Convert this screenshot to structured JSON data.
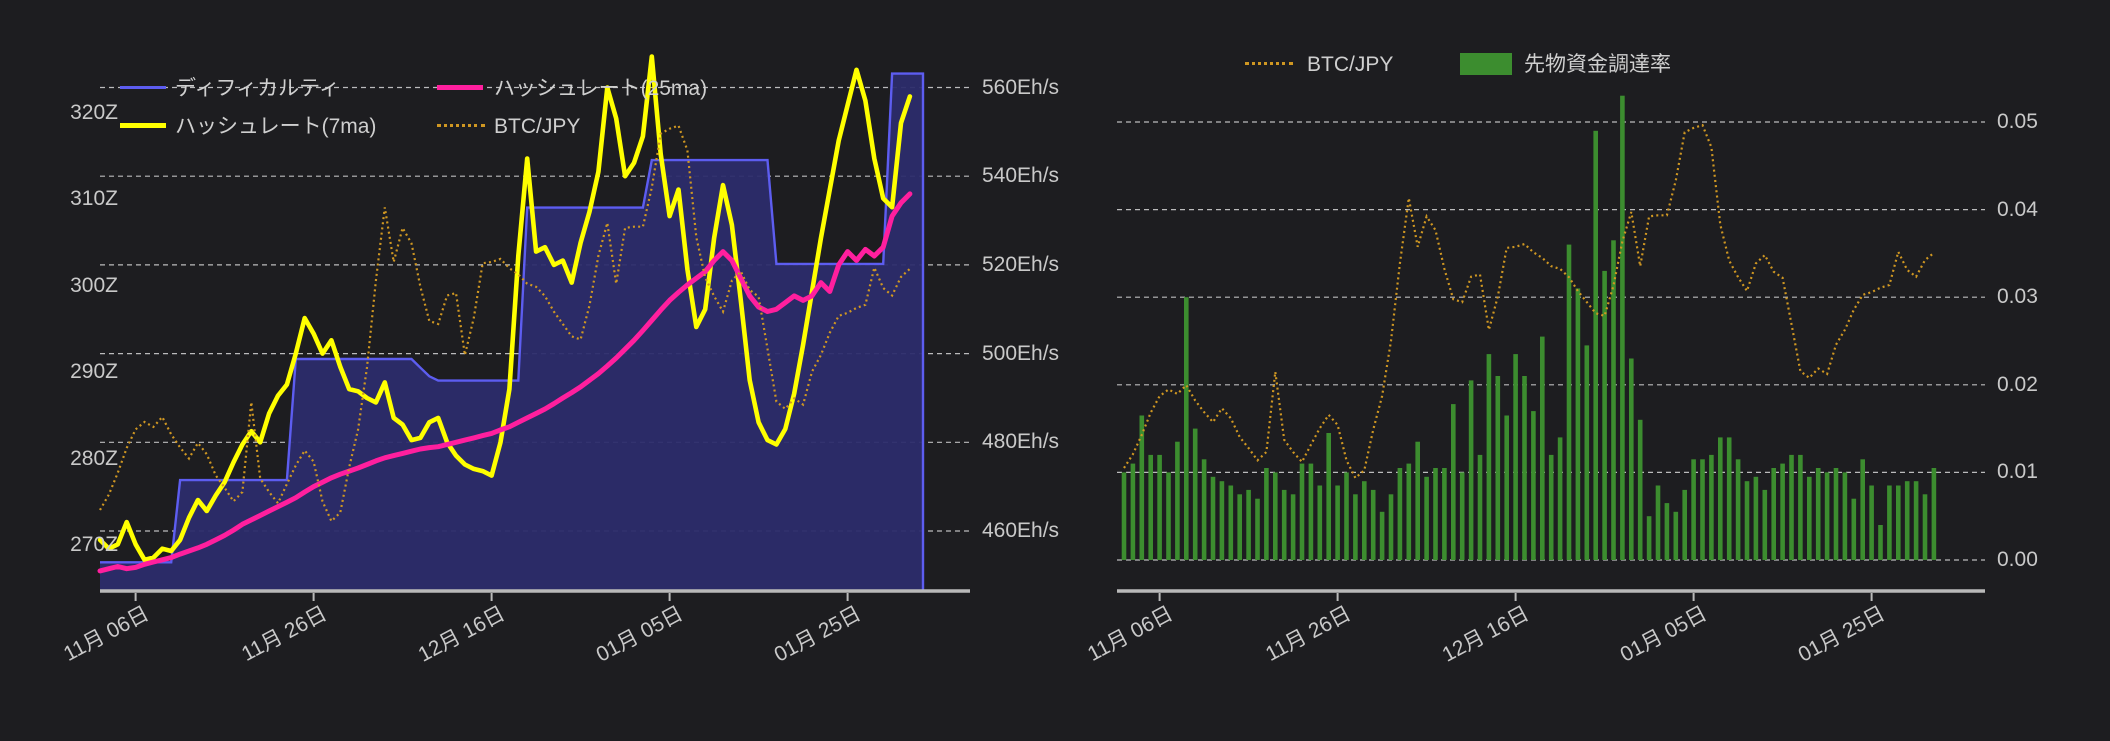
{
  "app": {
    "background": "#1d1d20",
    "description_visible_text_only": true
  },
  "chart_data": [
    {
      "type": "line",
      "title": "",
      "position": "left",
      "grid": true,
      "legend_position": "top, 2 columns",
      "x_tick_labels": [
        "11月 06日",
        "11月 26日",
        "12月 16日",
        "01月 05日",
        "01月 25日"
      ],
      "x_tick_days": [
        4,
        24,
        44,
        64,
        84
      ],
      "x_unit": "day index (1 point per day)",
      "y_left_axis": {
        "labels": [
          "320Z",
          "310Z",
          "300Z",
          "290Z",
          "280Z",
          "270Z"
        ],
        "values": [
          320,
          310,
          300,
          290,
          280,
          270
        ],
        "unit": "Z"
      },
      "y_right_axis": {
        "labels": [
          "560Eh/s",
          "540Eh/s",
          "520Eh/s",
          "500Eh/s",
          "480Eh/s",
          "460Eh/s"
        ],
        "values": [
          560,
          540,
          520,
          500,
          480,
          460
        ],
        "unit": "Eh/s"
      },
      "legend": [
        {
          "label": "ディフィカルティ",
          "color": "#5d5df0",
          "style": "line"
        },
        {
          "label": "ハッシュレート(25ma)",
          "color": "#ff1f9e",
          "style": "line"
        },
        {
          "label": "ハッシュレート(7ma)",
          "color": "#ffff00",
          "style": "line"
        },
        {
          "label": "BTC/JPY",
          "color": "#cf9722",
          "style": "dotted"
        }
      ],
      "series": [
        {
          "name": "ディフィカルティ",
          "type": "step_area",
          "axis": "left",
          "unit": "Z",
          "color": "#5d5df0",
          "fill": "#2c2c6c",
          "values": [
            268,
            268,
            268,
            268,
            268,
            268,
            268,
            268,
            268,
            277.5,
            277.5,
            277.5,
            277.5,
            277.5,
            277.5,
            277.5,
            277.5,
            277.5,
            277.5,
            277.5,
            277.5,
            277.5,
            291.5,
            291.5,
            291.5,
            291.5,
            291.5,
            291.5,
            291.5,
            291.5,
            291.5,
            291.5,
            291.5,
            291.5,
            291.5,
            291.5,
            290.5,
            289.5,
            289,
            289,
            289,
            289,
            289,
            289,
            289,
            289,
            289,
            289,
            309,
            309,
            309,
            309,
            309,
            309,
            309,
            309,
            309,
            309,
            309,
            309,
            309,
            309,
            314.5,
            314.5,
            314.5,
            314.5,
            314.5,
            314.5,
            314.5,
            314.5,
            314.5,
            314.5,
            314.5,
            314.5,
            314.5,
            314.5,
            302.5,
            302.5,
            302.5,
            302.5,
            302.5,
            302.5,
            302.5,
            302.5,
            302.5,
            302.5,
            302.5,
            302.5,
            302.5,
            324.5,
            324.5,
            324.5
          ]
        },
        {
          "name": "ハッシュレート(7ma)",
          "type": "line",
          "axis": "right",
          "unit": "Eh/s",
          "color": "#ffff00",
          "values": [
            458,
            456,
            457,
            462,
            457,
            453.5,
            454,
            456,
            455.5,
            458,
            463,
            467,
            464.5,
            468,
            471,
            475.5,
            479.5,
            482.5,
            480,
            486.5,
            490.5,
            493,
            500,
            508,
            504.5,
            500,
            503,
            497,
            492,
            491.5,
            490,
            489,
            493.5,
            485.5,
            484,
            480.5,
            481,
            484.5,
            485.5,
            480,
            477,
            475,
            474,
            473.5,
            472.5,
            480,
            492,
            522,
            544,
            523,
            524,
            520,
            521,
            516,
            525,
            532,
            541,
            560,
            553,
            540,
            543,
            549,
            567,
            545,
            531,
            537,
            519,
            506,
            510,
            526,
            538,
            529,
            512,
            494,
            484.5,
            480.5,
            479.5,
            483,
            491,
            502,
            514,
            526,
            537,
            548,
            556,
            564,
            557,
            544,
            535,
            533,
            552,
            558
          ]
        },
        {
          "name": "ハッシュレート(25ma)",
          "type": "line",
          "axis": "right",
          "unit": "Eh/s",
          "color": "#ff1f9e",
          "values": [
            451,
            451.5,
            452,
            451.5,
            451.8,
            452.5,
            453,
            453.5,
            454,
            454.8,
            455.5,
            456.2,
            457,
            458,
            459,
            460.2,
            461.5,
            462.5,
            463.5,
            464.5,
            465.5,
            466.5,
            467.5,
            468.8,
            470,
            471,
            472,
            472.8,
            473.5,
            474.2,
            475,
            475.8,
            476.5,
            477,
            477.5,
            478,
            478.5,
            478.8,
            479,
            479.5,
            480,
            480.5,
            481,
            481.5,
            482,
            482.8,
            483.5,
            484.5,
            485.5,
            486.5,
            487.5,
            488.7,
            490,
            491.2,
            492.5,
            494,
            495.5,
            497.2,
            499,
            501,
            503,
            505.2,
            507.5,
            509.8,
            512,
            513.8,
            515.5,
            517,
            518.5,
            521,
            523,
            521,
            517,
            513,
            510.5,
            509.5,
            510,
            511.5,
            513,
            512,
            513,
            516,
            514,
            520,
            523,
            521,
            523.5,
            522,
            524,
            531,
            534,
            536
          ]
        },
        {
          "name": "BTC/JPY",
          "type": "dotted_line",
          "axis": "hidden",
          "unit": "million JPY",
          "color": "#cf9722",
          "values": [
            10.3,
            10.55,
            10.9,
            11.3,
            11.6,
            11.72,
            11.64,
            11.8,
            11.52,
            11.31,
            11.13,
            11.38,
            11.2,
            10.86,
            10.66,
            10.44,
            10.59,
            12.04,
            10.81,
            10.59,
            10.41,
            10.72,
            11.02,
            11.26,
            11.08,
            10.44,
            10.12,
            10.26,
            10.99,
            11.6,
            12.6,
            14.0,
            15.18,
            14.3,
            14.85,
            14.6,
            13.9,
            13.35,
            13.3,
            13.76,
            13.8,
            12.8,
            13.4,
            14.28,
            14.3,
            14.35,
            14.2,
            14.1,
            13.95,
            13.9,
            13.75,
            13.5,
            13.3,
            13.1,
            13.05,
            13.6,
            14.4,
            14.93,
            13.95,
            14.85,
            14.87,
            14.87,
            15.5,
            16.37,
            16.45,
            16.5,
            16.1,
            14.7,
            14.05,
            13.75,
            13.5,
            14.0,
            14.15,
            13.85,
            13.74,
            12.9,
            12.05,
            11.93,
            12.1,
            12.0,
            12.53,
            12.8,
            13.16,
            13.43,
            13.48,
            13.56,
            13.61,
            14.21,
            13.88,
            13.76,
            14.06,
            14.19
          ]
        }
      ]
    },
    {
      "type": "bar",
      "title": "",
      "position": "right",
      "grid": true,
      "legend_position": "top centered, 1 row",
      "x_tick_labels": [
        "11月 06日",
        "11月 26日",
        "12月 16日",
        "01月 05日",
        "01月 25日"
      ],
      "x_tick_days": [
        4,
        24,
        44,
        64,
        84
      ],
      "x_unit": "day index (1 bar per day)",
      "y_right_axis": {
        "labels": [
          "0.05",
          "0.04",
          "0.03",
          "0.02",
          "0.01",
          "0.00"
        ],
        "values": [
          0.05,
          0.04,
          0.03,
          0.02,
          0.01,
          0.0
        ]
      },
      "legend": [
        {
          "label": "BTC/JPY",
          "color": "#cf9722",
          "style": "dotted"
        },
        {
          "label": "先物資金調達率",
          "color": "#3c8d2f",
          "style": "box"
        }
      ],
      "series": [
        {
          "name": "先物資金調達率",
          "type": "bar",
          "axis": "right",
          "color": "#3c8d2f",
          "values": [
            0.01,
            0.011,
            0.0165,
            0.012,
            0.012,
            0.01,
            0.0135,
            0.03,
            0.015,
            0.0115,
            0.0095,
            0.009,
            0.0085,
            0.0075,
            0.008,
            0.007,
            0.0105,
            0.01,
            0.008,
            0.0075,
            0.011,
            0.011,
            0.0085,
            0.0145,
            0.0085,
            0.01,
            0.0075,
            0.009,
            0.008,
            0.0055,
            0.0075,
            0.0105,
            0.011,
            0.0135,
            0.0095,
            0.0105,
            0.0105,
            0.0178,
            0.01,
            0.0205,
            0.012,
            0.0235,
            0.021,
            0.0165,
            0.0235,
            0.021,
            0.017,
            0.0255,
            0.012,
            0.014,
            0.036,
            0.031,
            0.0245,
            0.049,
            0.033,
            0.0365,
            0.053,
            0.023,
            0.016,
            0.005,
            0.0085,
            0.0065,
            0.0055,
            0.008,
            0.0115,
            0.0115,
            0.012,
            0.014,
            0.014,
            0.0115,
            0.009,
            0.0095,
            0.008,
            0.0105,
            0.011,
            0.012,
            0.012,
            0.0095,
            0.0105,
            0.01,
            0.0105,
            0.01,
            0.007,
            0.0115,
            0.0085,
            0.004,
            0.0085,
            0.0085,
            0.009,
            0.009,
            0.0075,
            0.0105
          ]
        },
        {
          "name": "BTC/JPY",
          "type": "dotted_line",
          "axis": "hidden",
          "unit": "million JPY",
          "color": "#cf9722",
          "values": [
            10.3,
            10.55,
            10.9,
            11.3,
            11.6,
            11.72,
            11.64,
            11.8,
            11.52,
            11.31,
            11.13,
            11.38,
            11.2,
            10.86,
            10.66,
            10.44,
            10.59,
            12.04,
            10.81,
            10.59,
            10.41,
            10.72,
            11.02,
            11.26,
            11.08,
            10.44,
            10.12,
            10.26,
            10.99,
            11.6,
            12.6,
            14.0,
            15.18,
            14.3,
            14.85,
            14.6,
            13.9,
            13.35,
            13.3,
            13.76,
            13.8,
            12.8,
            13.4,
            14.28,
            14.3,
            14.35,
            14.2,
            14.1,
            13.95,
            13.9,
            13.75,
            13.5,
            13.3,
            13.1,
            13.05,
            13.6,
            14.4,
            14.93,
            13.95,
            14.85,
            14.87,
            14.87,
            15.5,
            16.37,
            16.45,
            16.5,
            16.1,
            14.7,
            14.05,
            13.75,
            13.5,
            14.0,
            14.15,
            13.85,
            13.74,
            12.9,
            12.05,
            11.93,
            12.1,
            12.0,
            12.53,
            12.8,
            13.16,
            13.43,
            13.48,
            13.56,
            13.61,
            14.21,
            13.88,
            13.76,
            14.06,
            14.19
          ]
        }
      ]
    }
  ]
}
